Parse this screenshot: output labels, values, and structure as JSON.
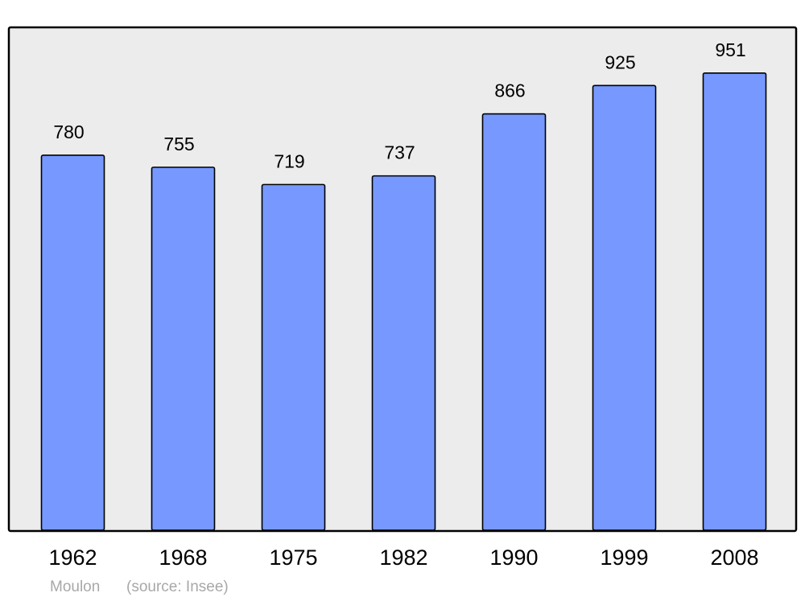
{
  "chart_data": {
    "type": "bar",
    "categories": [
      "1962",
      "1968",
      "1975",
      "1982",
      "1990",
      "1999",
      "2008"
    ],
    "values": [
      780,
      755,
      719,
      737,
      866,
      925,
      951
    ],
    "color": "#7799ff",
    "ylim": [
      0,
      1046
    ],
    "footer": {
      "name": "Moulon",
      "source": "(source: Insee)"
    }
  }
}
